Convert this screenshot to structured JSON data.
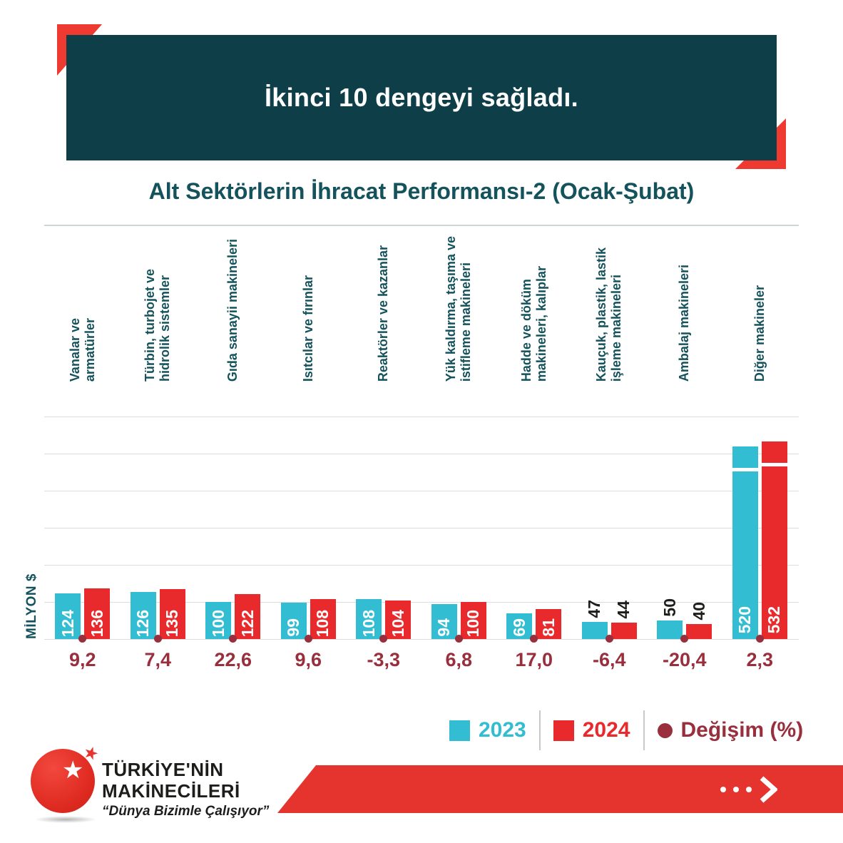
{
  "header": {
    "title": "İkinci 10 dengeyi sağladı."
  },
  "chart_data": {
    "type": "bar",
    "title": "Alt Sektörlerin İhracat Performansı-2 (Ocak-Şubat)",
    "ylabel": "MİLYON $",
    "xlabel": "",
    "ylim": [
      0,
      600
    ],
    "ytick_step": 100,
    "grid": true,
    "legend_position": "bottom",
    "categories": [
      "Vanalar ve\narmatürler",
      "Türbin, turbojet ve\nhidrolik sistemler",
      "Gıda sanayii makineleri",
      "Isıtcılar ve fırınlar",
      "Reaktörler ve kazanlar",
      "Yük kaldırma, taşıma ve\nistifleme makineleri",
      "Hadde ve döküm\nmakineleri, kalıplar",
      "Kauçuk, plastik, lastik\nişleme makineleri",
      "Ambalaj makineleri",
      "Diğer makineler"
    ],
    "series": [
      {
        "name": "2023",
        "color": "#33bdd3",
        "values": [
          124,
          126,
          100,
          99,
          108,
          94,
          69,
          47,
          50,
          520
        ]
      },
      {
        "name": "2024",
        "color": "#e92a2c",
        "values": [
          136,
          135,
          122,
          108,
          104,
          100,
          81,
          44,
          40,
          532
        ]
      }
    ],
    "change_percent": {
      "name": "Değişim (%)",
      "color": "#992e3c",
      "values": [
        "9,2",
        "7,4",
        "22,6",
        "9,6",
        "-3,3",
        "6,8",
        "17,0",
        "-6,4",
        "-20,4",
        "2,3"
      ]
    },
    "break_group_index": 9,
    "axis_break_category": "Diğer makineler"
  },
  "footer": {
    "brand_line1": "TÜRKİYE'NİN",
    "brand_line2": "MAKİNECİLERİ",
    "slogan": "“Dünya Bizimle Çalışıyor”"
  },
  "icons": {
    "logo_star": "★",
    "logo_small_star": "★"
  },
  "colors": {
    "teal_dark": "#0e3f48",
    "teal_text": "#14525c",
    "cyan": "#33bdd3",
    "red": "#e92a2c",
    "maroon": "#992e3c",
    "banner_red": "#e5332d",
    "accent_red": "#ee3a30",
    "grid": "#dcdcdc"
  }
}
